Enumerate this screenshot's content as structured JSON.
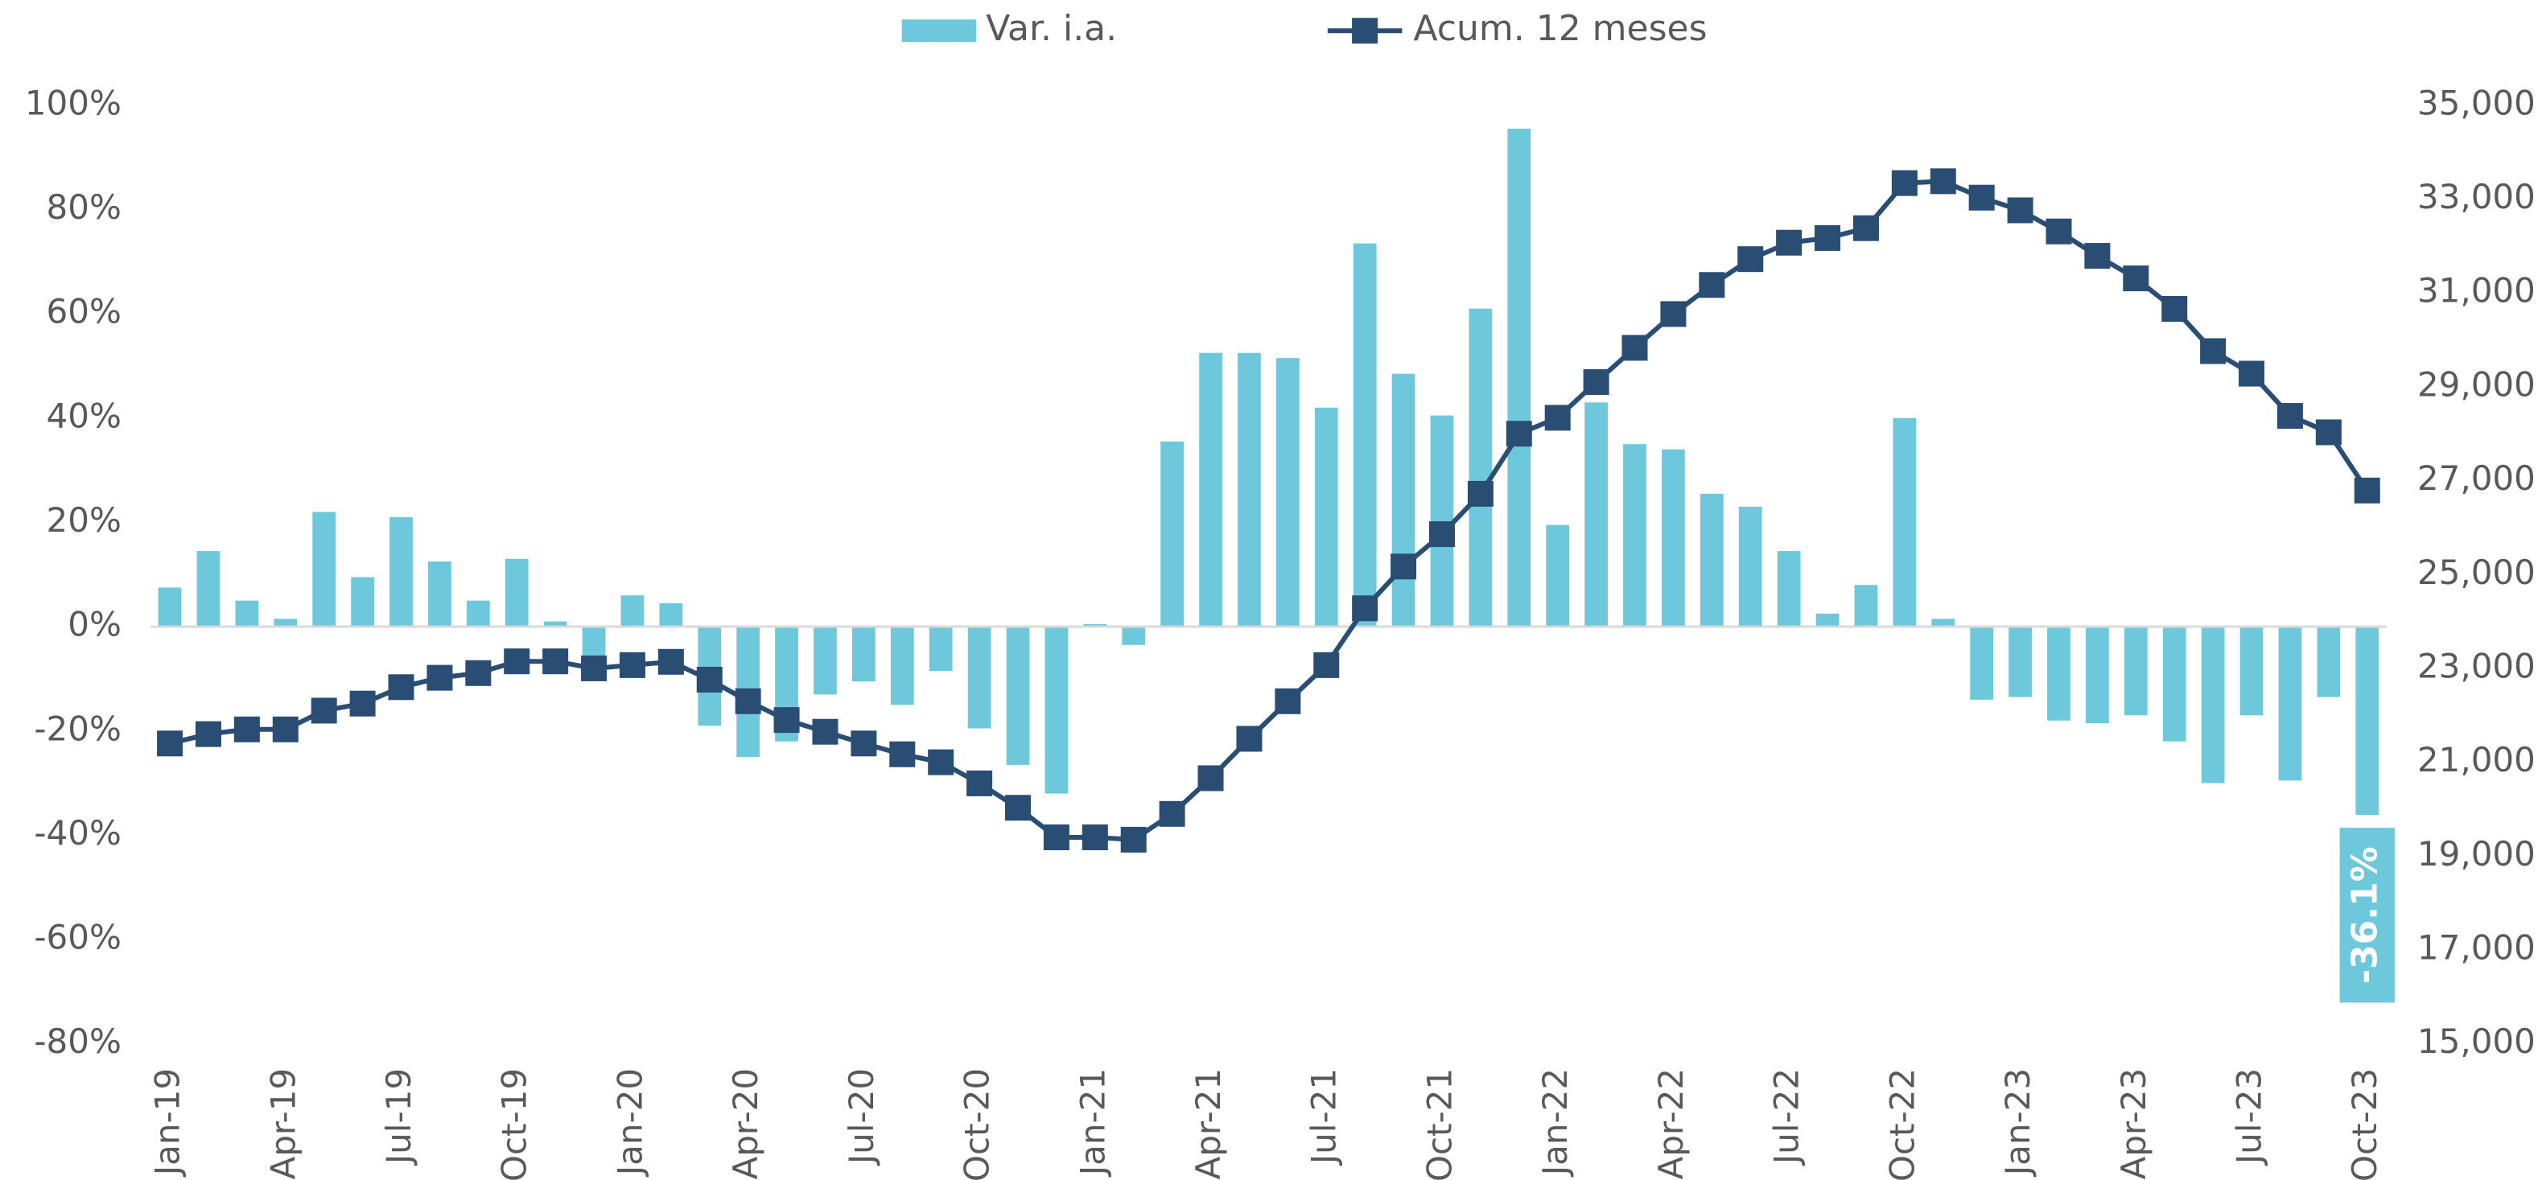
{
  "chart_data": {
    "type": "bar",
    "categories": [
      "Jan-19",
      null,
      null,
      "Apr-19",
      null,
      null,
      "Jul-19",
      null,
      null,
      "Oct-19",
      null,
      null,
      "Jan-20",
      null,
      null,
      "Apr-20",
      null,
      null,
      "Jul-20",
      null,
      null,
      "Oct-20",
      null,
      null,
      "Jan-21",
      null,
      null,
      "Apr-21",
      null,
      null,
      "Jul-21",
      null,
      null,
      "Oct-21",
      null,
      null,
      "Jan-22",
      null,
      null,
      "Apr-22",
      null,
      null,
      "Jul-22",
      null,
      null,
      "Oct-22",
      null,
      null,
      "Jan-23",
      null,
      null,
      "Apr-23",
      null,
      null,
      "Jul-23",
      null,
      null,
      "Oct-23"
    ],
    "series": [
      {
        "name": "Var. i.a.",
        "type": "bar",
        "axis": "y",
        "color": "#6dc8dc",
        "values": [
          7.5,
          14.5,
          5,
          1.5,
          22,
          9.5,
          21,
          12.5,
          5,
          13,
          1,
          -6,
          6,
          4.5,
          -19,
          -25,
          -22,
          -13,
          -10.5,
          -15,
          -8.5,
          -19.5,
          -26.5,
          -32,
          0.5,
          -3.5,
          35.5,
          52.5,
          52.5,
          51.5,
          42,
          73.5,
          48.5,
          40.5,
          61,
          95.5,
          19.5,
          43,
          35,
          34,
          25.5,
          23,
          14.5,
          2.5,
          8,
          40,
          1.5,
          -14,
          -13.5,
          -18,
          -18.5,
          -17,
          -22,
          -30,
          -17,
          -29.5,
          -13.5,
          -36.1
        ],
        "value_labels": [
          null,
          null,
          null,
          null,
          null,
          null,
          null,
          null,
          null,
          null,
          null,
          null,
          null,
          null,
          null,
          null,
          null,
          null,
          null,
          null,
          null,
          null,
          null,
          null,
          null,
          null,
          null,
          null,
          null,
          null,
          null,
          null,
          null,
          null,
          null,
          null,
          null,
          null,
          null,
          null,
          null,
          null,
          null,
          null,
          null,
          null,
          null,
          null,
          null,
          null,
          null,
          null,
          null,
          null,
          null,
          null,
          null,
          "-36.1%"
        ]
      },
      {
        "name": "Acum. 12 meses",
        "type": "line",
        "marker": "square",
        "axis": "y2",
        "color": "#2a4d73",
        "values": [
          21400,
          21600,
          21700,
          21700,
          22100,
          22250,
          22600,
          22800,
          22900,
          23150,
          23150,
          23000,
          23070,
          23140,
          22760,
          22300,
          21900,
          21650,
          21400,
          21170,
          21000,
          20550,
          20030,
          19400,
          19400,
          19350,
          19900,
          20660,
          21500,
          22300,
          23070,
          24280,
          25170,
          25860,
          26720,
          28000,
          28340,
          29100,
          29830,
          30550,
          31170,
          31720,
          32070,
          32170,
          32380,
          33340,
          33380,
          33030,
          32760,
          32310,
          31790,
          31310,
          30660,
          29760,
          29280,
          28380,
          28030,
          26790
        ]
      }
    ],
    "ylim": [
      -80,
      100
    ],
    "yticks": [
      {
        "value": -80,
        "label": "-80%"
      },
      {
        "value": -60,
        "label": "-60%"
      },
      {
        "value": -40,
        "label": "-40%"
      },
      {
        "value": -20,
        "label": "-20%"
      },
      {
        "value": 0,
        "label": "0%"
      },
      {
        "value": 20,
        "label": "20%"
      },
      {
        "value": 40,
        "label": "40%"
      },
      {
        "value": 60,
        "label": "60%"
      },
      {
        "value": 80,
        "label": "80%"
      },
      {
        "value": 100,
        "label": "100%"
      }
    ],
    "y2lim": [
      15000,
      35000
    ],
    "y2ticks": [
      {
        "value": 15000,
        "label": "15,000"
      },
      {
        "value": 17000,
        "label": "17,000"
      },
      {
        "value": 19000,
        "label": "19,000"
      },
      {
        "value": 21000,
        "label": "21,000"
      },
      {
        "value": 23000,
        "label": "23,000"
      },
      {
        "value": 25000,
        "label": "25,000"
      },
      {
        "value": 27000,
        "label": "27,000"
      },
      {
        "value": 29000,
        "label": "29,000"
      },
      {
        "value": 31000,
        "label": "31,000"
      },
      {
        "value": 33000,
        "label": "33,000"
      },
      {
        "value": 35000,
        "label": "35,000"
      }
    ],
    "grid": false,
    "legend": "top"
  }
}
